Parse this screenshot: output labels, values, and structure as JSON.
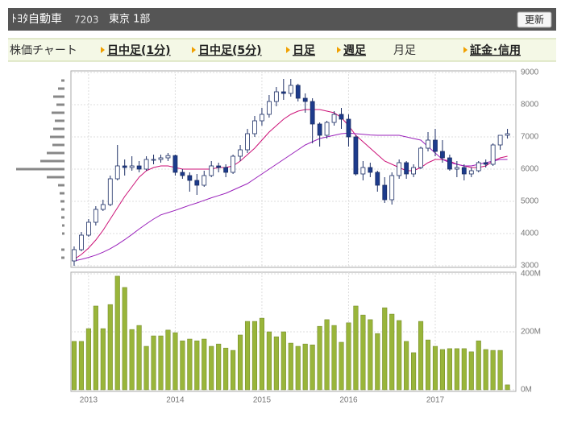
{
  "header": {
    "company": "ﾄﾖﾀ自動車",
    "code": "7203",
    "market": "東京 1部",
    "button": "更新"
  },
  "tabs": {
    "label": "株価チャート",
    "items": [
      "日中足(1分)",
      "日中足(5分)",
      "日足",
      "週足",
      "月足",
      "証金･信用"
    ],
    "active": 4
  },
  "chart_data": [
    {
      "type": "candlestick",
      "categories": [
        null,
        null,
        "2013",
        null,
        null,
        null,
        null,
        null,
        null,
        null,
        null,
        null,
        null,
        null,
        "2014",
        null,
        null,
        null,
        null,
        null,
        null,
        null,
        null,
        null,
        null,
        null,
        "2015",
        null,
        null,
        null,
        null,
        null,
        null,
        null,
        null,
        null,
        null,
        null,
        "2016",
        null,
        null,
        null,
        null,
        null,
        null,
        null,
        null,
        null,
        null,
        null,
        "2017",
        null,
        null,
        null,
        null,
        null,
        null,
        null,
        null,
        null,
        null
      ],
      "open": [
        3150,
        3500,
        3950,
        4350,
        4750,
        4900,
        5700,
        6100,
        6050,
        6100,
        6000,
        6300,
        6300,
        6350,
        6420,
        5900,
        5800,
        5650,
        5500,
        5800,
        6100,
        6050,
        5900,
        6400,
        6600,
        7100,
        7500,
        7700,
        8100,
        8400,
        8350,
        8600,
        8200,
        8100,
        7400,
        7050,
        7450,
        7700,
        7550,
        7000,
        5850,
        6050,
        5900,
        5500,
        5050,
        5800,
        6200,
        5850,
        6050,
        6650,
        6900,
        6550,
        6350,
        6000,
        6050,
        5850,
        5950,
        6200,
        6150,
        6750,
        7050
      ],
      "high": [
        3600,
        4050,
        4450,
        4850,
        5050,
        5800,
        6750,
        6300,
        6400,
        6250,
        6400,
        6450,
        6450,
        6500,
        6450,
        6000,
        5900,
        5850,
        5950,
        6250,
        6200,
        6150,
        6450,
        6750,
        7250,
        7650,
        7900,
        8300,
        8550,
        8800,
        8800,
        8650,
        8350,
        8200,
        7450,
        7500,
        7800,
        7900,
        7700,
        7050,
        6250,
        6200,
        5950,
        5750,
        5900,
        6300,
        6250,
        6150,
        6700,
        7150,
        7250,
        6900,
        6450,
        6250,
        6150,
        6050,
        6250,
        6300,
        6800,
        7050,
        7250
      ],
      "low": [
        3000,
        3450,
        3900,
        4250,
        4700,
        4850,
        5650,
        5800,
        5950,
        5900,
        5950,
        6150,
        6200,
        6250,
        5800,
        5700,
        5300,
        5200,
        5450,
        5750,
        5900,
        5750,
        5850,
        6250,
        6500,
        7000,
        7350,
        7600,
        7950,
        8150,
        8250,
        8100,
        7750,
        6800,
        6700,
        6950,
        7350,
        7250,
        6700,
        5800,
        5650,
        5750,
        5300,
        4950,
        4900,
        5700,
        5700,
        5750,
        6000,
        6550,
        6400,
        6200,
        5950,
        5750,
        5650,
        5750,
        5900,
        6050,
        6100,
        6600,
        6950
      ],
      "close": [
        3500,
        3950,
        4350,
        4750,
        4900,
        5700,
        6100,
        6050,
        6100,
        6000,
        6300,
        6300,
        6350,
        6420,
        5900,
        5800,
        5650,
        5500,
        5800,
        6100,
        6050,
        5900,
        6400,
        6600,
        7100,
        7500,
        7700,
        8100,
        8400,
        8350,
        8600,
        8200,
        8100,
        7400,
        7050,
        7450,
        7700,
        7550,
        7000,
        5850,
        6050,
        5900,
        5500,
        5050,
        5800,
        6200,
        5850,
        6050,
        6650,
        6900,
        6550,
        6350,
        6000,
        6050,
        5850,
        5950,
        6200,
        6150,
        6750,
        7050,
        7100
      ],
      "up_color": "#ffffff",
      "down_color": "#1d3b8c",
      "edge_color": "#1d2f66",
      "series": [
        {
          "color": "#cc1177",
          "values": [
            3200,
            3350,
            3550,
            3800,
            4100,
            4450,
            4800,
            5150,
            5450,
            5750,
            5950,
            6050,
            6100,
            6100,
            6050,
            6000,
            6000,
            6000,
            6000,
            6000,
            6050,
            6050,
            6100,
            6250,
            6450,
            6650,
            6900,
            7150,
            7350,
            7550,
            7700,
            7800,
            7850,
            7850,
            7850,
            7800,
            7750,
            7600,
            7350,
            7050,
            6850,
            6650,
            6450,
            6250,
            6150,
            6050,
            5950,
            5950,
            6050,
            6200,
            6300,
            6300,
            6250,
            6150,
            6100,
            6050,
            6050,
            6100,
            6250,
            6350,
            6400
          ]
        },
        {
          "color": "#9a22bb",
          "values": [
            3150,
            3200,
            3260,
            3330,
            3420,
            3530,
            3660,
            3810,
            3970,
            4140,
            4300,
            4450,
            4580,
            4650,
            4720,
            4800,
            4880,
            4950,
            5030,
            5110,
            5180,
            5250,
            5350,
            5450,
            5550,
            5700,
            5850,
            6000,
            6150,
            6300,
            6450,
            6600,
            6750,
            6850,
            6950,
            7000,
            7050,
            7100,
            7120,
            7100,
            7080,
            7060,
            7050,
            7050,
            7050,
            7050,
            7000,
            6950,
            6900,
            6700,
            6500,
            6300,
            6200,
            6150,
            6100,
            6100,
            6150,
            6200,
            6250,
            6300,
            6300
          ]
        }
      ],
      "ylim": [
        3000,
        9000
      ],
      "yticks": [
        3000,
        4000,
        5000,
        6000,
        7000,
        8000,
        9000
      ],
      "grid": true,
      "volume_profile": {
        "color": "#888888",
        "levels": [
          3250,
          3500,
          3750,
          4000,
          4250,
          4500,
          4750,
          5000,
          5250,
          5500,
          5750,
          6000,
          6250,
          6500,
          6750,
          7000,
          7250,
          7500,
          7750,
          8000,
          8250,
          8500,
          8750
        ],
        "values": [
          4,
          4,
          0,
          3,
          3,
          4,
          4,
          5,
          6,
          8,
          22,
          60,
          30,
          22,
          15,
          18,
          14,
          12,
          16,
          10,
          14,
          8,
          4
        ]
      }
    },
    {
      "type": "bar",
      "color": "#99b53a",
      "edge_color": "#6d8424",
      "values": [
        167000000,
        167000000,
        211000000,
        289000000,
        211000000,
        294000000,
        392000000,
        353000000,
        208000000,
        222000000,
        150000000,
        186000000,
        186000000,
        206000000,
        197000000,
        169000000,
        175000000,
        169000000,
        175000000,
        150000000,
        158000000,
        144000000,
        136000000,
        189000000,
        236000000,
        236000000,
        247000000,
        200000000,
        183000000,
        200000000,
        161000000,
        150000000,
        158000000,
        155000000,
        219000000,
        242000000,
        222000000,
        164000000,
        231000000,
        289000000,
        258000000,
        242000000,
        194000000,
        283000000,
        261000000,
        239000000,
        167000000,
        128000000,
        236000000,
        172000000,
        150000000,
        139000000,
        142000000,
        142000000,
        142000000,
        131000000,
        169000000,
        139000000,
        136000000,
        136000000,
        17000000
      ],
      "ylim": [
        0,
        400000000
      ],
      "yticks": [
        {
          "value": 0,
          "label": "0M"
        },
        {
          "value": 200000000,
          "label": "200M"
        },
        {
          "value": 400000000,
          "label": "400M"
        }
      ],
      "grid": true
    }
  ]
}
